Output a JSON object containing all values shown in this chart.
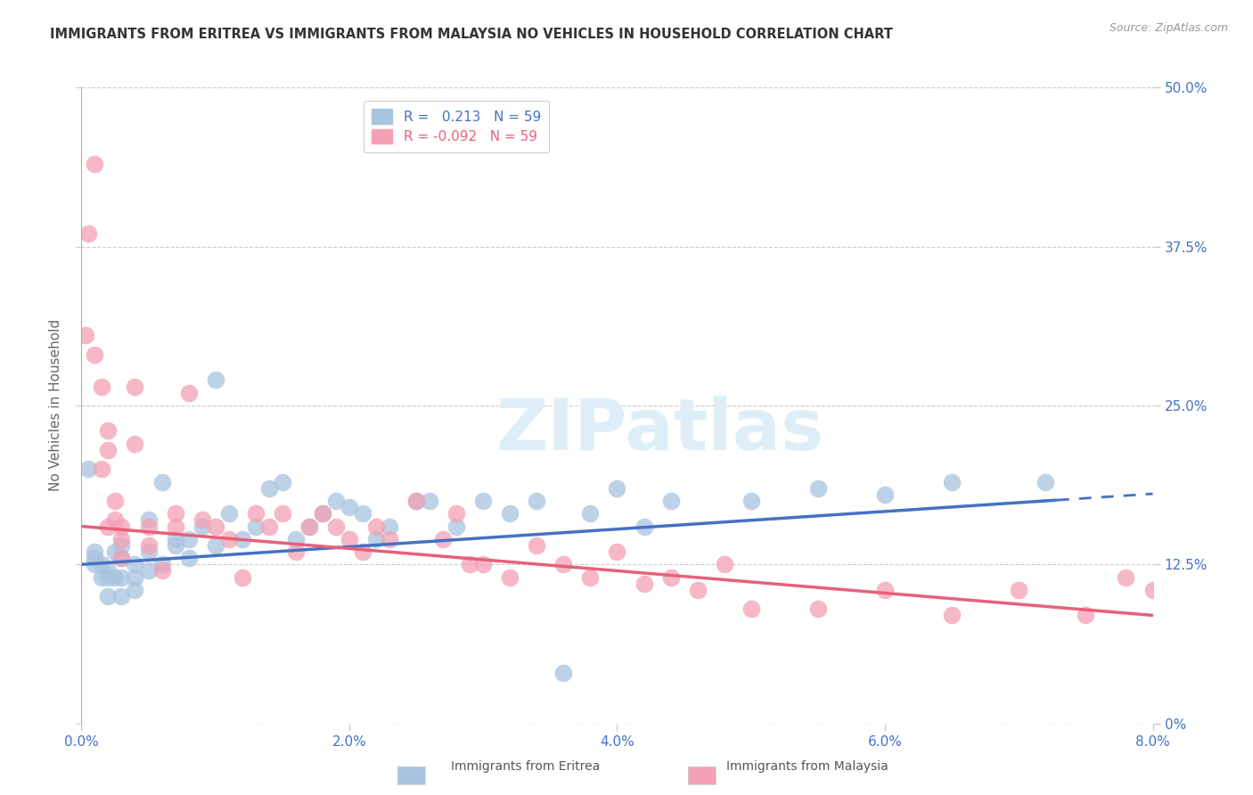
{
  "title": "IMMIGRANTS FROM ERITREA VS IMMIGRANTS FROM MALAYSIA NO VEHICLES IN HOUSEHOLD CORRELATION CHART",
  "source": "Source: ZipAtlas.com",
  "ylabel": "No Vehicles in Household",
  "r_eritrea": 0.213,
  "r_malaysia": -0.092,
  "n_eritrea": 59,
  "n_malaysia": 59,
  "xlim": [
    0.0,
    0.08
  ],
  "ylim": [
    0.0,
    0.5
  ],
  "xticks": [
    0.0,
    0.02,
    0.04,
    0.06,
    0.08
  ],
  "xticklabels": [
    "0.0%",
    "2.0%",
    "4.0%",
    "6.0%",
    "8.0%"
  ],
  "yticks": [
    0.0,
    0.125,
    0.25,
    0.375,
    0.5
  ],
  "yticklabels_right": [
    "0%",
    "12.5%",
    "25.0%",
    "37.5%",
    "50.0%"
  ],
  "color_eritrea": "#a8c4e0",
  "color_malaysia": "#f4a0b5",
  "color_eritrea_line": "#4472c4",
  "color_malaysia_line": "#e8607a",
  "watermark_color": "#ddeef8",
  "legend_label_eritrea": "Immigrants from Eritrea",
  "legend_label_malaysia": "Immigrants from Malaysia",
  "eritrea_x": [
    0.0005,
    0.001,
    0.001,
    0.001,
    0.0015,
    0.0015,
    0.002,
    0.002,
    0.002,
    0.0025,
    0.0025,
    0.003,
    0.003,
    0.003,
    0.003,
    0.004,
    0.004,
    0.004,
    0.005,
    0.005,
    0.005,
    0.006,
    0.006,
    0.007,
    0.007,
    0.008,
    0.008,
    0.009,
    0.01,
    0.01,
    0.011,
    0.012,
    0.013,
    0.014,
    0.015,
    0.016,
    0.017,
    0.018,
    0.019,
    0.02,
    0.021,
    0.022,
    0.023,
    0.025,
    0.026,
    0.028,
    0.03,
    0.032,
    0.034,
    0.036,
    0.038,
    0.04,
    0.042,
    0.044,
    0.05,
    0.055,
    0.06,
    0.065,
    0.072
  ],
  "eritrea_y": [
    0.2,
    0.135,
    0.13,
    0.125,
    0.125,
    0.115,
    0.12,
    0.115,
    0.1,
    0.135,
    0.115,
    0.14,
    0.13,
    0.115,
    0.1,
    0.115,
    0.125,
    0.105,
    0.16,
    0.135,
    0.12,
    0.19,
    0.125,
    0.145,
    0.14,
    0.13,
    0.145,
    0.155,
    0.27,
    0.14,
    0.165,
    0.145,
    0.155,
    0.185,
    0.19,
    0.145,
    0.155,
    0.165,
    0.175,
    0.17,
    0.165,
    0.145,
    0.155,
    0.175,
    0.175,
    0.155,
    0.175,
    0.165,
    0.175,
    0.04,
    0.165,
    0.185,
    0.155,
    0.175,
    0.175,
    0.185,
    0.18,
    0.19,
    0.19
  ],
  "malaysia_x": [
    0.0003,
    0.0005,
    0.001,
    0.001,
    0.0015,
    0.0015,
    0.002,
    0.002,
    0.002,
    0.0025,
    0.0025,
    0.003,
    0.003,
    0.003,
    0.004,
    0.004,
    0.005,
    0.005,
    0.006,
    0.007,
    0.007,
    0.008,
    0.009,
    0.01,
    0.011,
    0.012,
    0.013,
    0.014,
    0.015,
    0.016,
    0.017,
    0.018,
    0.019,
    0.02,
    0.021,
    0.022,
    0.023,
    0.025,
    0.027,
    0.028,
    0.029,
    0.03,
    0.032,
    0.034,
    0.036,
    0.038,
    0.04,
    0.042,
    0.044,
    0.046,
    0.048,
    0.05,
    0.055,
    0.06,
    0.065,
    0.07,
    0.075,
    0.078,
    0.08
  ],
  "malaysia_y": [
    0.305,
    0.385,
    0.29,
    0.44,
    0.2,
    0.265,
    0.155,
    0.215,
    0.23,
    0.16,
    0.175,
    0.145,
    0.155,
    0.13,
    0.265,
    0.22,
    0.155,
    0.14,
    0.12,
    0.165,
    0.155,
    0.26,
    0.16,
    0.155,
    0.145,
    0.115,
    0.165,
    0.155,
    0.165,
    0.135,
    0.155,
    0.165,
    0.155,
    0.145,
    0.135,
    0.155,
    0.145,
    0.175,
    0.145,
    0.165,
    0.125,
    0.125,
    0.115,
    0.14,
    0.125,
    0.115,
    0.135,
    0.11,
    0.115,
    0.105,
    0.125,
    0.09,
    0.09,
    0.105,
    0.085,
    0.105,
    0.085,
    0.115,
    0.105
  ]
}
